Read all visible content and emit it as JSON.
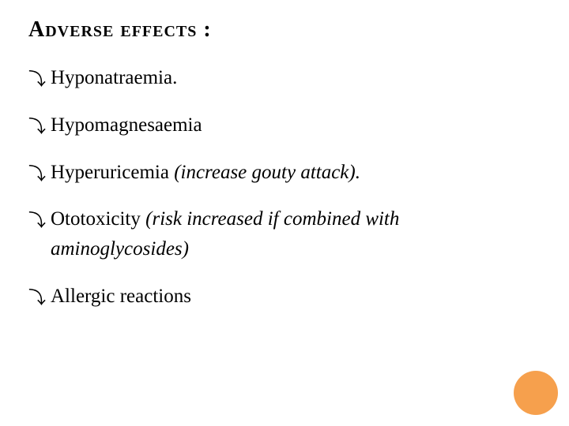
{
  "title_text": "Adverse effects",
  "title_colon": " :",
  "bullet_marker": "⤵",
  "items": [
    {
      "main": "Hyponatraemia.",
      "note": ""
    },
    {
      "main": "Hypomagnesaemia",
      "note": ""
    },
    {
      "main": "Hyperuricemia ",
      "note": "(increase gouty attack)."
    },
    {
      "main": "Ototoxicity ",
      "note": "(risk increased if combined with",
      "cont": "aminoglycosides)"
    },
    {
      "main": "Allergic reactions",
      "note": ""
    }
  ],
  "colors": {
    "text": "#000000",
    "accent_circle": "#f6a04d",
    "background": "#ffffff"
  }
}
